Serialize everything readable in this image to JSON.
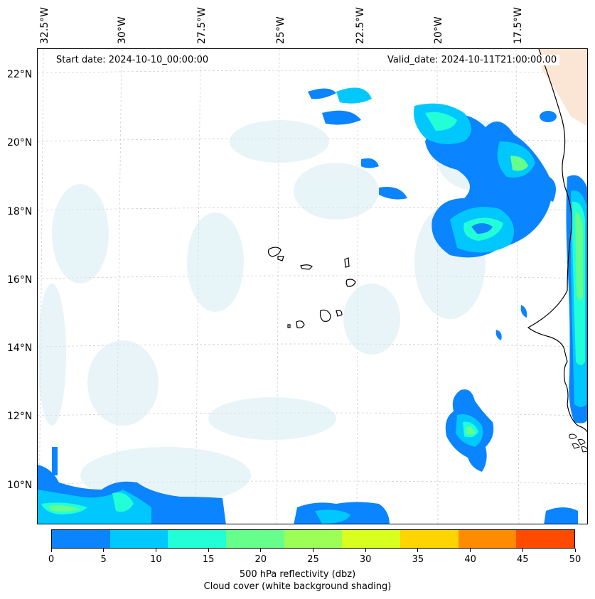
{
  "header": {
    "start_date": "Start date: 2024-10-10_00:00:00",
    "valid_date": "Valid_date: 2024-10-11T21:00:00.00"
  },
  "longitude_labels": [
    "32.5°W",
    "30°W",
    "27.5°W",
    "25°W",
    "22.5°W",
    "20°W",
    "17.5°W"
  ],
  "latitude_labels": [
    "22°N",
    "20°N",
    "18°N",
    "16°N",
    "14°N",
    "12°N",
    "10°N"
  ],
  "colorbar": {
    "ticks": [
      "0",
      "5",
      "10",
      "15",
      "20",
      "25",
      "30",
      "35",
      "40",
      "45",
      "50"
    ],
    "colors": [
      "#0a84ff",
      "#00c8ff",
      "#22ffd6",
      "#66ff8c",
      "#9cff55",
      "#d8ff1e",
      "#ffd400",
      "#ff8c00",
      "#ff4b00"
    ],
    "label": "500 hPa reflectivity (dbz)",
    "sublabel": "Cloud cover (white background shading)"
  },
  "colors": {
    "cloud": "#d6ecf2",
    "coast": "#000000",
    "land_shade": "#fbe2d0"
  }
}
